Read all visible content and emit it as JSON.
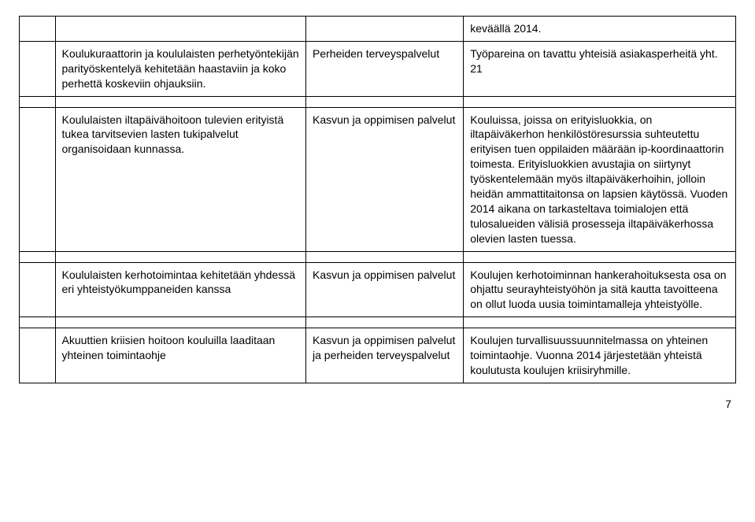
{
  "table": {
    "rows": [
      {
        "col0": "",
        "col1": "",
        "col2": "",
        "col3": "keväällä 2014."
      },
      {
        "col0": "",
        "col1": "Koulukuraattorin ja koululaisten perhetyöntekijän parityöskentelyä kehitetään haastaviin ja koko perhettä koskeviin ohjauksiin.",
        "col2": "Perheiden terveyspalvelut",
        "col3": "Työpareina on tavattu yhteisiä asiakasperheitä yht. 21"
      },
      {
        "col0": "",
        "col1": "Koululaisten iltapäivähoitoon tulevien erityistä tukea tarvitsevien lasten tukipalvelut organisoidaan kunnassa.",
        "col2": "Kasvun ja oppimisen palvelut",
        "col3": "Kouluissa, joissa on erityisluokkia, on iltapäiväkerhon henkilöstöresurssia suhteutettu erityisen tuen oppilaiden määrään ip-koordinaattorin toimesta. Erityisluokkien avustajia on siirtynyt työskentelemään myös iltapäiväkerhoihin, jolloin heidän ammattitaitonsa on lapsien käytössä. Vuoden 2014 aikana on tarkasteltava toimialojen että tulosalueiden välisiä prosesseja iltapäiväkerhossa olevien lasten tuessa."
      },
      {
        "col0": "",
        "col1": "Koululaisten kerhotoimintaa kehitetään yhdessä eri yhteistyökumppaneiden kanssa",
        "col2": "Kasvun ja oppimisen palvelut",
        "col3": "Koulujen kerhotoiminnan hankerahoituksesta osa on ohjattu seurayhteistyöhön ja sitä kautta tavoitteena on ollut luoda uusia toimintamalleja yhteistyölle."
      },
      {
        "col0": "",
        "col1": "Akuuttien kriisien hoitoon kouluilla laaditaan yhteinen toimintaohje",
        "col2": "Kasvun ja oppimisen palvelut ja perheiden terveyspalvelut",
        "col3": "Koulujen turvallisuussuunnitelmassa on yhteinen toimintaohje. Vuonna 2014 järjestetään yhteistä koulutusta koulujen kriisiryhmille."
      }
    ]
  },
  "page_number": "7"
}
